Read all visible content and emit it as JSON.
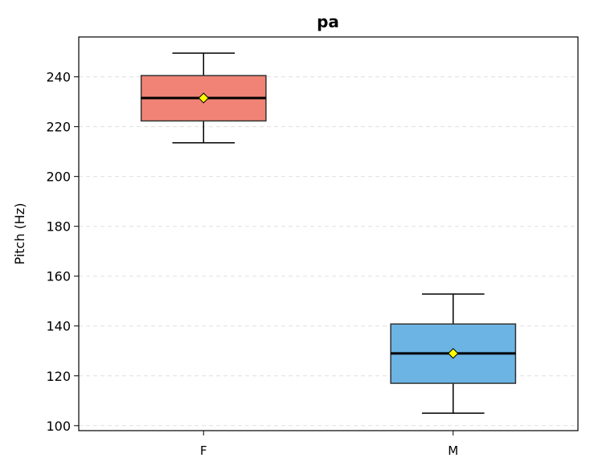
{
  "chart_data": {
    "type": "box",
    "title": "pa",
    "xlabel": "",
    "ylabel": "Pitch (Hz)",
    "ylim": [
      98,
      256
    ],
    "yticks": [
      100,
      120,
      140,
      160,
      180,
      200,
      220,
      240
    ],
    "grid": "horizontal-dashed",
    "categories": [
      "F",
      "M"
    ],
    "boxes": [
      {
        "category": "F",
        "whisker_low": 213.5,
        "q1": 222.3,
        "median": 231.5,
        "q3": 240.5,
        "whisker_high": 249.5,
        "mean": 231.5,
        "color": "#f08375"
      },
      {
        "category": "M",
        "whisker_low": 105.0,
        "q1": 117.0,
        "median": 129.0,
        "q3": 140.8,
        "whisker_high": 152.8,
        "mean": 129.0,
        "color": "#6cb4e4"
      }
    ],
    "mean_marker_color": "#ffff00"
  }
}
